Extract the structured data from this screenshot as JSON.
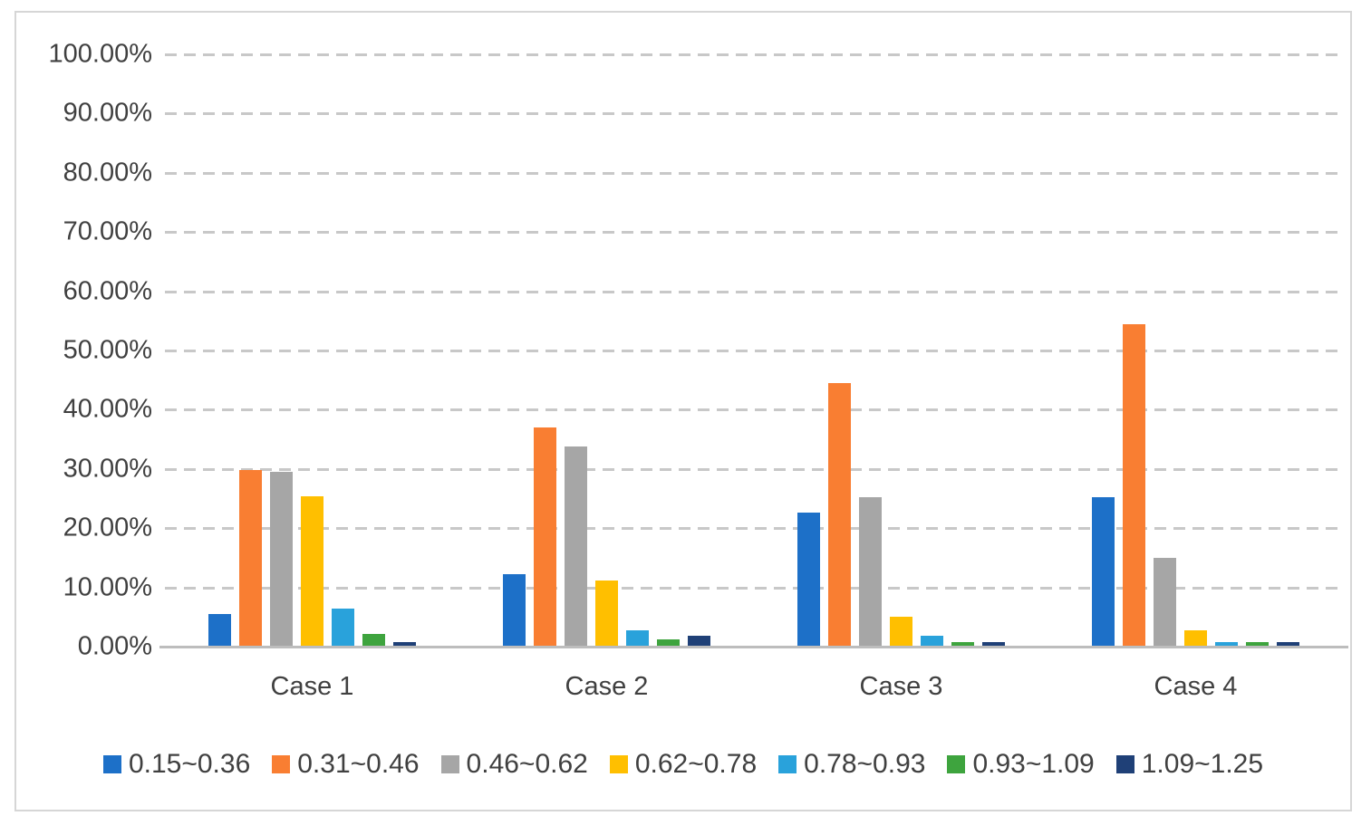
{
  "figure": {
    "background_color": "#ffffff",
    "border_color": "#d6d6d6",
    "text_color": "#404040",
    "gridline_color": "#c8c8c8",
    "axis_color": "#bdbdbd"
  },
  "chart_data": {
    "type": "bar",
    "title": "",
    "xlabel": "",
    "ylabel": "",
    "categories": [
      "Case 1",
      "Case 2",
      "Case 3",
      "Case 4"
    ],
    "series": [
      {
        "name": "0.15~0.36",
        "color": "#1d70c8",
        "values": [
          5.5,
          12.2,
          22.6,
          25.3
        ]
      },
      {
        "name": "0.31~0.46",
        "color": "#f97e32",
        "values": [
          29.8,
          37.0,
          44.5,
          54.5
        ]
      },
      {
        "name": "0.46~0.62",
        "color": "#a6a6a6",
        "values": [
          29.5,
          33.8,
          25.3,
          15.0
        ]
      },
      {
        "name": "0.62~0.78",
        "color": "#ffbf00",
        "values": [
          25.4,
          11.2,
          5.0,
          2.7
        ]
      },
      {
        "name": "0.78~0.93",
        "color": "#29a2db",
        "values": [
          6.5,
          2.7,
          1.8,
          0.8
        ]
      },
      {
        "name": "0.93~1.09",
        "color": "#3ea43e",
        "values": [
          2.1,
          1.2,
          0.8,
          0.8
        ]
      },
      {
        "name": "1.09~1.25",
        "color": "#1f4077",
        "values": [
          0.8,
          1.8,
          0.8,
          0.8
        ]
      }
    ],
    "ylim": [
      0,
      100
    ],
    "ytick_step": 10,
    "yticks": [
      "100.00%",
      "90.00%",
      "80.00%",
      "70.00%",
      "60.00%",
      "50.00%",
      "40.00%",
      "30.00%",
      "20.00%",
      "10.00%",
      "0.00%"
    ],
    "grid": "horizontal-dashed",
    "legend_position": "bottom"
  }
}
